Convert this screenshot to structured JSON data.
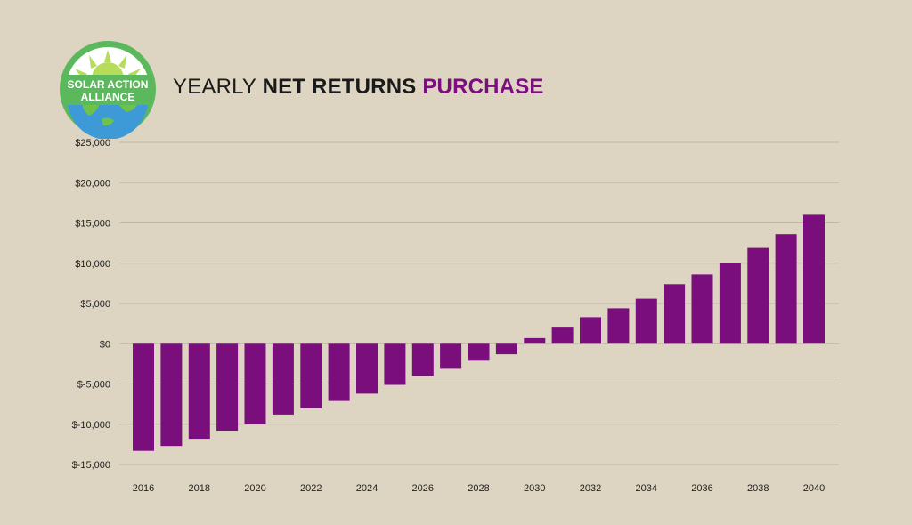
{
  "logo": {
    "line1": "SOLAR ACTION",
    "line2": "ALLIANCE"
  },
  "title": {
    "part1": "YEARLY",
    "part2": "NET RETURNS",
    "part3": "PURCHASE"
  },
  "colors": {
    "background": "#ddd5c1",
    "bar": "#7b0e7d",
    "title_accent": "#7b0e7d",
    "gridline": "#bfb6a3",
    "logo_ring": "#5cb85c",
    "logo_globe": "#3d9ad6",
    "logo_sun": "#b6dd5a"
  },
  "chart_data": {
    "type": "bar",
    "x": [
      2016,
      2017,
      2018,
      2019,
      2020,
      2021,
      2022,
      2023,
      2024,
      2025,
      2026,
      2027,
      2028,
      2029,
      2030,
      2031,
      2032,
      2033,
      2034,
      2035,
      2036,
      2037,
      2038,
      2039,
      2040
    ],
    "values": [
      -13300,
      -12700,
      -11800,
      -10800,
      -10000,
      -8800,
      -8000,
      -7100,
      -6200,
      -5100,
      -4000,
      -3100,
      -2100,
      -1300,
      700,
      2000,
      3300,
      4400,
      5600,
      7400,
      8600,
      10000,
      11900,
      13600,
      16000
    ],
    "xticks": [
      "2016",
      "2018",
      "2020",
      "2022",
      "2024",
      "2026",
      "2028",
      "2030",
      "2032",
      "2034",
      "2036",
      "2038",
      "2040"
    ],
    "yticks": [
      "$25,000",
      "$20,000",
      "$15,000",
      "$10,000",
      "$5,000",
      "$0",
      "$-5,000",
      "$-10,000",
      "$-15,000"
    ],
    "ytick_values": [
      25000,
      20000,
      15000,
      10000,
      5000,
      0,
      -5000,
      -10000,
      -15000
    ],
    "ylim": [
      -15000,
      25000
    ],
    "grid": true
  }
}
